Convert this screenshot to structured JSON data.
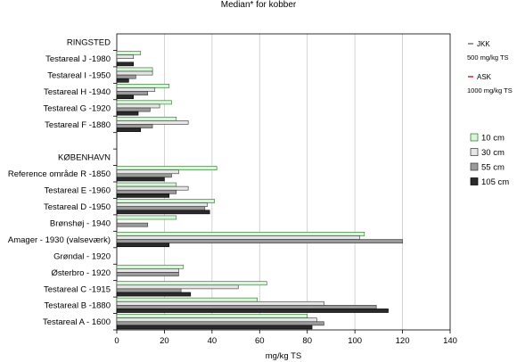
{
  "chart_data": {
    "type": "bar",
    "orientation": "horizontal",
    "title": "Median* for kobber",
    "xlabel": "mg/kg TS",
    "xlim": [
      0,
      140
    ],
    "xticks": [
      0,
      20,
      40,
      60,
      80,
      100,
      120,
      140
    ],
    "grid": true,
    "legend_position": "right",
    "rows": [
      {
        "label": "RINGSTED",
        "group_header": true
      },
      {
        "label": "Testareal J -1980",
        "values": [
          10,
          7,
          null,
          7
        ]
      },
      {
        "label": "Testareal I -1950",
        "values": [
          15,
          15,
          8,
          5
        ]
      },
      {
        "label": "Testareal H -1940",
        "values": [
          22,
          16,
          13,
          7
        ]
      },
      {
        "label": "Testareal G -1920",
        "values": [
          23,
          18,
          14,
          9
        ]
      },
      {
        "label": "Testareal F -1880",
        "values": [
          25,
          30,
          15,
          10
        ]
      },
      {
        "label": "",
        "spacer": true
      },
      {
        "label": "KØBENHAVN",
        "group_header": true
      },
      {
        "label": "Reference område R -1850",
        "values": [
          42,
          26,
          23,
          20
        ]
      },
      {
        "label": "Testareal E -1960",
        "values": [
          25,
          30,
          25,
          22
        ]
      },
      {
        "label": "Testareal D -1950",
        "values": [
          41,
          38,
          37,
          39
        ]
      },
      {
        "label": "Brønshøj  - 1940",
        "values": [
          25,
          null,
          13,
          null
        ]
      },
      {
        "label": "Amager - 1930 (valseværk)",
        "values": [
          104,
          102,
          120,
          22
        ]
      },
      {
        "label": "Grøndal  - 1920",
        "values": [
          null,
          null,
          null,
          null
        ]
      },
      {
        "label": "Østerbro - 1920",
        "values": [
          28,
          26,
          26,
          null
        ]
      },
      {
        "label": "Testareal C -1915",
        "values": [
          63,
          51,
          27,
          31
        ]
      },
      {
        "label": "Testareal B -1880",
        "values": [
          59,
          87,
          109,
          114
        ]
      },
      {
        "label": "Testareal A - 1600",
        "values": [
          80,
          84,
          87,
          82
        ]
      }
    ],
    "series": [
      {
        "name": "10 cm",
        "color": "#d7f5d7",
        "stroke": "#2a6e2a"
      },
      {
        "name": "30 cm",
        "color": "#e6e6e6",
        "stroke": "#333333"
      },
      {
        "name": "55 cm",
        "color": "#9a9a9a",
        "stroke": "#333333"
      },
      {
        "name": "105 cm",
        "color": "#2a2a2a",
        "stroke": "#000000"
      }
    ],
    "reference_lines": [
      {
        "name": "JKK",
        "sub": "500 mg/kg TS",
        "color": "#7f7f7f"
      },
      {
        "name": "ASK",
        "sub": "1000 mg/kg TS",
        "color": "#e03030"
      }
    ]
  }
}
